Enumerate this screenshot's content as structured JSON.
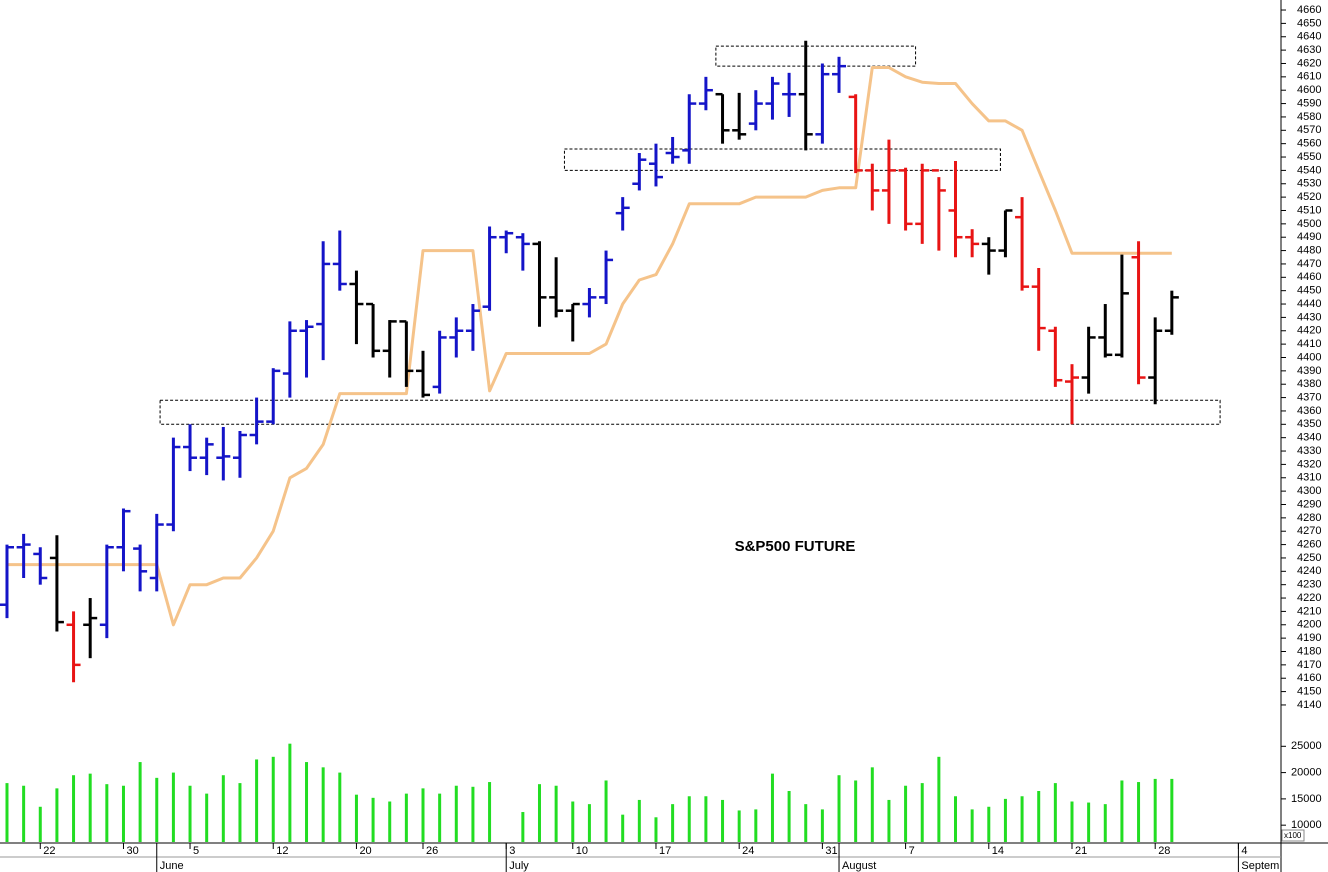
{
  "chart_data": {
    "type": "ohlc",
    "annotation": "S&P500 FUTURE",
    "xlim": [
      -0.42,
      76.5
    ],
    "ylim": [
      4125,
      4667.5
    ],
    "yticks": [
      4140,
      4150,
      4160,
      4170,
      4180,
      4190,
      4200,
      4210,
      4220,
      4230,
      4240,
      4250,
      4260,
      4270,
      4280,
      4290,
      4300,
      4310,
      4320,
      4330,
      4340,
      4350,
      4360,
      4370,
      4380,
      4390,
      4400,
      4410,
      4420,
      4430,
      4440,
      4450,
      4460,
      4470,
      4480,
      4490,
      4500,
      4510,
      4520,
      4530,
      4540,
      4550,
      4560,
      4570,
      4580,
      4590,
      4600,
      4610,
      4620,
      4630,
      4640,
      4650,
      4660
    ],
    "xticks": [
      {
        "value": 2,
        "label": "22"
      },
      {
        "value": 7,
        "label": "30"
      },
      {
        "value": 11,
        "label": "5"
      },
      {
        "value": 16,
        "label": "12"
      },
      {
        "value": 21,
        "label": "20"
      },
      {
        "value": 25,
        "label": "26"
      },
      {
        "value": 30,
        "label": "3"
      },
      {
        "value": 34,
        "label": "10"
      },
      {
        "value": 39,
        "label": "17"
      },
      {
        "value": 44,
        "label": "24"
      },
      {
        "value": 49,
        "label": "31"
      },
      {
        "value": 54,
        "label": "7"
      },
      {
        "value": 59,
        "label": "14"
      },
      {
        "value": 64,
        "label": "21"
      },
      {
        "value": 69,
        "label": "28"
      },
      {
        "value": 74,
        "label": "4"
      }
    ],
    "month_ticks": [
      {
        "value": 9,
        "label": "June"
      },
      {
        "value": 30,
        "label": "July"
      },
      {
        "value": 50,
        "label": "August"
      },
      {
        "value": 74,
        "label": "Septem"
      }
    ],
    "open": [
      4215,
      4258,
      4253,
      4250,
      4200,
      4200,
      4200,
      4258,
      4257,
      4235,
      4275,
      4333,
      4325,
      4325,
      4325,
      4342,
      4352,
      4388,
      4420,
      4425,
      4470,
      4455,
      4440,
      4405,
      4427,
      4390,
      4378,
      4415,
      4420,
      4438,
      4490,
      4490,
      4485,
      4445,
      4435,
      4440,
      4445,
      4508,
      4530,
      4545,
      4553,
      4555,
      4590,
      4597,
      4570,
      4575,
      4590,
      4597,
      4597,
      4567,
      4612,
      4595,
      4540,
      4525,
      4540,
      4500,
      4540,
      4510,
      4490,
      4485,
      4480,
      4505,
      4453,
      4420,
      4382,
      4385,
      4415,
      4402,
      4475,
      4385,
      4420
    ],
    "high": [
      4260,
      4268,
      4258,
      4267,
      4210,
      4220,
      4260,
      4287,
      4260,
      4283,
      4340,
      4350,
      4340,
      4348,
      4345,
      4370,
      4392,
      4427,
      4428,
      4487,
      4495,
      4465,
      4440,
      4428,
      4427,
      4405,
      4420,
      4430,
      4440,
      4498,
      4495,
      4493,
      4487,
      4475,
      4440,
      4452,
      4480,
      4520,
      4553,
      4560,
      4565,
      4597,
      4610,
      4597,
      4598,
      4600,
      4610,
      4613,
      4637,
      4620,
      4625,
      4597,
      4545,
      4563,
      4542,
      4545,
      4535,
      4547,
      4496,
      4490,
      4510,
      4520,
      4467,
      4423,
      4395,
      4423,
      4440,
      4477,
      4487,
      4430,
      4450
    ],
    "low": [
      4205,
      4235,
      4230,
      4195,
      4157,
      4175,
      4190,
      4240,
      4225,
      4225,
      4270,
      4315,
      4312,
      4308,
      4310,
      4335,
      4350,
      4370,
      4385,
      4398,
      4450,
      4410,
      4400,
      4385,
      4378,
      4370,
      4373,
      4400,
      4405,
      4435,
      4478,
      4465,
      4423,
      4430,
      4412,
      4430,
      4440,
      4495,
      4525,
      4528,
      4545,
      4545,
      4585,
      4560,
      4563,
      4570,
      4578,
      4580,
      4555,
      4560,
      4598,
      4538,
      4510,
      4500,
      4495,
      4485,
      4480,
      4475,
      4475,
      4462,
      4475,
      4450,
      4405,
      4378,
      4350,
      4373,
      4400,
      4400,
      4380,
      4365,
      4417
    ],
    "close": [
      4258,
      4260,
      4235,
      4202,
      4170,
      4205,
      4258,
      4285,
      4240,
      4275,
      4333,
      4325,
      4335,
      4326,
      4342,
      4352,
      4390,
      4420,
      4423,
      4470,
      4455,
      4440,
      4405,
      4427,
      4390,
      4372,
      4415,
      4420,
      4435,
      4490,
      4493,
      4485,
      4445,
      4435,
      4440,
      4445,
      4473,
      4512,
      4548,
      4535,
      4550,
      4590,
      4600,
      4570,
      4567,
      4590,
      4605,
      4597,
      4567,
      4612,
      4618,
      4540,
      4525,
      4540,
      4500,
      4540,
      4525,
      4490,
      4485,
      4480,
      4510,
      4453,
      4422,
      4383,
      4385,
      4415,
      4402,
      4448,
      4385,
      4420,
      4445
    ],
    "bar_colors": [
      "#1414c8",
      "#1414c8",
      "#1414c8",
      "#000000",
      "#e81414",
      "#000000",
      "#1414c8",
      "#1414c8",
      "#1414c8",
      "#1414c8",
      "#1414c8",
      "#1414c8",
      "#1414c8",
      "#1414c8",
      "#1414c8",
      "#1414c8",
      "#1414c8",
      "#1414c8",
      "#1414c8",
      "#1414c8",
      "#1414c8",
      "#000000",
      "#000000",
      "#000000",
      "#000000",
      "#000000",
      "#1414c8",
      "#1414c8",
      "#1414c8",
      "#1414c8",
      "#1414c8",
      "#1414c8",
      "#000000",
      "#000000",
      "#000000",
      "#1414c8",
      "#1414c8",
      "#1414c8",
      "#1414c8",
      "#1414c8",
      "#1414c8",
      "#1414c8",
      "#1414c8",
      "#000000",
      "#000000",
      "#1414c8",
      "#1414c8",
      "#1414c8",
      "#000000",
      "#1414c8",
      "#1414c8",
      "#e81414",
      "#e81414",
      "#e81414",
      "#e81414",
      "#e81414",
      "#e81414",
      "#e81414",
      "#e81414",
      "#000000",
      "#000000",
      "#e81414",
      "#e81414",
      "#e81414",
      "#e81414",
      "#000000",
      "#000000",
      "#000000",
      "#e81414",
      "#000000",
      "#000000"
    ],
    "line": {
      "color": "#f5c38a",
      "values": [
        4245,
        4245,
        4245,
        4245,
        4245,
        4245,
        4245,
        4245,
        4245,
        4245,
        4200,
        4230,
        4230,
        4235,
        4235,
        4250,
        4270,
        4310,
        4317,
        4335,
        4373,
        4373,
        4373,
        4373,
        4373,
        4480,
        4480,
        4480,
        4480,
        4375,
        4403,
        4403,
        4403,
        4403,
        4403,
        4403,
        4410,
        4440,
        4458,
        4462,
        4485,
        4515,
        4515,
        4515,
        4515,
        4520,
        4520,
        4520,
        4520,
        4525,
        4527,
        4527,
        4617,
        4617,
        4610,
        4606,
        4605,
        4605,
        4590,
        4577,
        4577,
        4570,
        4540,
        4510,
        4478,
        4478,
        4478,
        4478,
        4478,
        4478,
        4478
      ]
    },
    "zones": [
      {
        "x": [
          42.6,
          54.6
        ],
        "y": [
          4618,
          4633
        ]
      },
      {
        "x": [
          33.5,
          59.7
        ],
        "y": [
          4540,
          4556
        ]
      },
      {
        "x": [
          9.2,
          72.9
        ],
        "y": [
          4350,
          4368
        ]
      }
    ],
    "volume": {
      "color": "#22dd22",
      "unit_label": "x100",
      "ylim": [
        6800,
        28100
      ],
      "yticks": [
        10000,
        15000,
        20000,
        25000
      ],
      "values": [
        18000,
        17500,
        13500,
        17000,
        19500,
        19800,
        17800,
        17500,
        22000,
        19000,
        20000,
        17500,
        16000,
        19500,
        18000,
        22500,
        23000,
        25500,
        22000,
        21000,
        20000,
        15800,
        15200,
        14500,
        16000,
        17000,
        16000,
        17500,
        17300,
        18200,
        null,
        12500,
        17800,
        17500,
        14500,
        14000,
        18500,
        12000,
        14800,
        11500,
        14000,
        15500,
        15500,
        14800,
        12800,
        13000,
        19800,
        16500,
        14000,
        13000,
        19500,
        18500,
        21000,
        14800,
        17500,
        18000,
        23000,
        15500,
        13000,
        13500,
        15000,
        15500,
        16500,
        18000,
        14500,
        14300,
        14000,
        18500,
        18200,
        18800,
        18800
      ]
    }
  }
}
